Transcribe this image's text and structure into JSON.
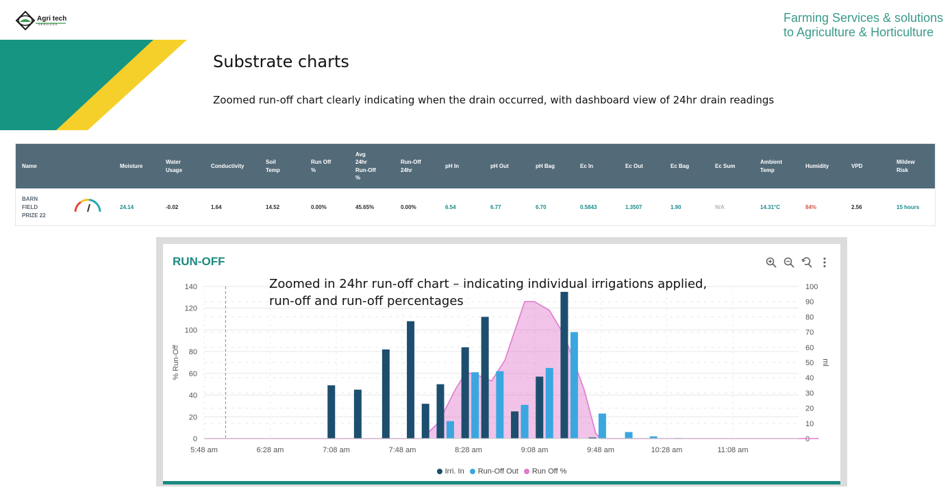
{
  "brand": {
    "logo_text": "Agri tech",
    "logo_sub": "SERVICES",
    "tagline_line1": "Farming Services & solutions",
    "tagline_line2": "to Agriculture & Horticulture",
    "colors": {
      "teal": "#169582",
      "yellow": "#f5d02a",
      "tagline": "#3a9a8a"
    }
  },
  "slide": {
    "title": "Substrate charts",
    "subtitle": "Zoomed run-off chart clearly indicating when the drain occurred, with dashboard view of 24hr drain readings"
  },
  "dashboard": {
    "header_color": "#536a79",
    "headers": [
      "Name",
      "",
      "Moisture",
      "Water\nUsage",
      "Conductivity",
      "Soil\nTemp",
      "Run Off\n%",
      "Avg\n24hr\nRun-Off\n%",
      "Run-Off\n24hr",
      "pH In",
      "pH Out",
      "pH Bag",
      "Ec In",
      "Ec Out",
      "Ec Bag",
      "Ec Sum",
      "Ambient\nTemp",
      "Humidity",
      "VPD",
      "Mildew\nRisk"
    ],
    "row": {
      "name": "BARN\nFIELD\nPRIZE 22",
      "gauge_icon": "gauge-icon",
      "values": [
        "24.14",
        "-0.02",
        "1.64",
        "14.52",
        "0.00%",
        "45.65%",
        "0.00%",
        "6.54",
        "6.77",
        "6.70",
        "0.5843",
        "1.3507",
        "1.90",
        "N/A",
        "14.31°C",
        "84%",
        "2.56",
        "15 hours"
      ]
    }
  },
  "chart_panel": {
    "title": "RUN-OFF",
    "annotation": "Zoomed in 24hr run-off chart – indicating individual irrigations applied, run-off and run-off percentages",
    "toolbar_icons": [
      "zoom-in-icon",
      "zoom-out-icon",
      "reset-zoom-icon",
      "more-menu-icon"
    ],
    "legend": [
      {
        "label": "Irri. In",
        "color": "#1d4e6e"
      },
      {
        "label": "Run-Off Out",
        "color": "#3aa7e0"
      },
      {
        "label": "Run Off %",
        "color": "#e07acd"
      }
    ]
  },
  "chart_data": {
    "type": "bar",
    "ylabel": "% Run-Off",
    "y2label": "ml",
    "ylim": [
      0,
      140
    ],
    "y2lim": [
      0,
      100
    ],
    "yticks": [
      0,
      20,
      40,
      60,
      80,
      100,
      120,
      140
    ],
    "y2ticks": [
      0,
      10,
      20,
      30,
      40,
      50,
      60,
      70,
      80,
      90,
      100
    ],
    "xticks": [
      "5:48 am",
      "6:28 am",
      "7:08 am",
      "7:48 am",
      "8:28 am",
      "9:08 am",
      "9:48 am",
      "10:28 am",
      "11:08 am"
    ],
    "grid": true,
    "legend_position": "bottom",
    "series": [
      {
        "name": "Irri. In",
        "kind": "bar",
        "color": "#1d4e6e",
        "points": [
          [
            "7:05 am",
            49
          ],
          [
            "7:21 am",
            45
          ],
          [
            "7:38 am",
            82
          ],
          [
            "7:53 am",
            108
          ],
          [
            "8:02 am",
            32
          ],
          [
            "8:11 am",
            50
          ],
          [
            "8:26 am",
            84
          ],
          [
            "8:38 am",
            112
          ],
          [
            "8:56 am",
            25
          ],
          [
            "9:11 am",
            57
          ],
          [
            "9:26 am",
            135
          ],
          [
            "9:43 am",
            1
          ]
        ]
      },
      {
        "name": "Run-Off Out",
        "kind": "bar",
        "color": "#3aa7e0",
        "points": [
          [
            "8:17 am",
            16
          ],
          [
            "8:32 am",
            61
          ],
          [
            "8:47 am",
            62
          ],
          [
            "9:02 am",
            31
          ],
          [
            "9:17 am",
            65
          ],
          [
            "9:32 am",
            98
          ],
          [
            "9:49 am",
            23
          ],
          [
            "10:05 am",
            6
          ],
          [
            "10:20 am",
            2
          ],
          [
            "10:35 am",
            0.5
          ]
        ]
      },
      {
        "name": "Run Off %",
        "kind": "area",
        "color": "#e07acd",
        "points": [
          [
            "5:48 am",
            0
          ],
          [
            "8:00 am",
            0
          ],
          [
            "8:10 am",
            15
          ],
          [
            "8:20 am",
            45
          ],
          [
            "8:26 am",
            60
          ],
          [
            "8:31 am",
            60
          ],
          [
            "8:42 am",
            53
          ],
          [
            "8:50 am",
            72
          ],
          [
            "9:02 am",
            126
          ],
          [
            "9:08 am",
            126
          ],
          [
            "9:17 am",
            118
          ],
          [
            "9:26 am",
            95
          ],
          [
            "9:38 am",
            45
          ],
          [
            "9:45 am",
            5
          ],
          [
            "9:48 am",
            0
          ],
          [
            "12:00 pm",
            0
          ]
        ]
      }
    ],
    "reference_line": "6:01 am"
  }
}
